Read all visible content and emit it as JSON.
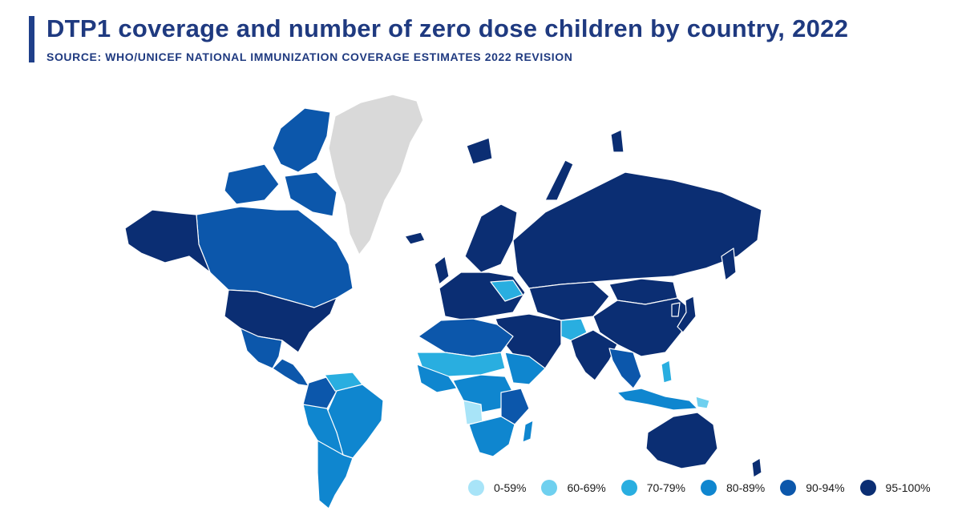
{
  "header": {
    "title": "DTP1 coverage and number of zero dose children by country, 2022",
    "subtitle": "SOURCE: WHO/UNICEF NATIONAL IMMUNIZATION COVERAGE ESTIMATES 2022 REVISION"
  },
  "colors": {
    "accent_bar": "#1f3f8a",
    "no_data": "#d9d9d9",
    "band_0_59": "#a8e4f8",
    "band_60_69": "#6fd0ef",
    "band_70_79": "#29aee0",
    "band_80_89": "#0f86cf",
    "band_90_94": "#0c57ab",
    "band_95_100": "#0b2e73"
  },
  "legend": {
    "items": [
      {
        "label": "0-59%",
        "color": "#a8e4f8"
      },
      {
        "label": "60-69%",
        "color": "#6fd0ef"
      },
      {
        "label": "70-79%",
        "color": "#29aee0"
      },
      {
        "label": "80-89%",
        "color": "#0f86cf"
      },
      {
        "label": "90-94%",
        "color": "#0c57ab"
      },
      {
        "label": "95-100%",
        "color": "#0b2e73"
      }
    ]
  },
  "map": {
    "regions": [
      {
        "name": "Greenland",
        "band": "no data"
      },
      {
        "name": "Canada",
        "band": "90-94%"
      },
      {
        "name": "United States",
        "band": "95-100%"
      },
      {
        "name": "Mexico",
        "band": "90-94%"
      },
      {
        "name": "Brazil",
        "band": "80-89%"
      },
      {
        "name": "Argentina",
        "band": "80-89%"
      },
      {
        "name": "Russia",
        "band": "95-100%"
      },
      {
        "name": "China",
        "band": "95-100%"
      },
      {
        "name": "India",
        "band": "95-100%"
      },
      {
        "name": "Australia",
        "band": "95-100%"
      },
      {
        "name": "Angola",
        "band": "0-59%"
      },
      {
        "name": "Afghanistan",
        "band": "70-79%"
      }
    ]
  }
}
